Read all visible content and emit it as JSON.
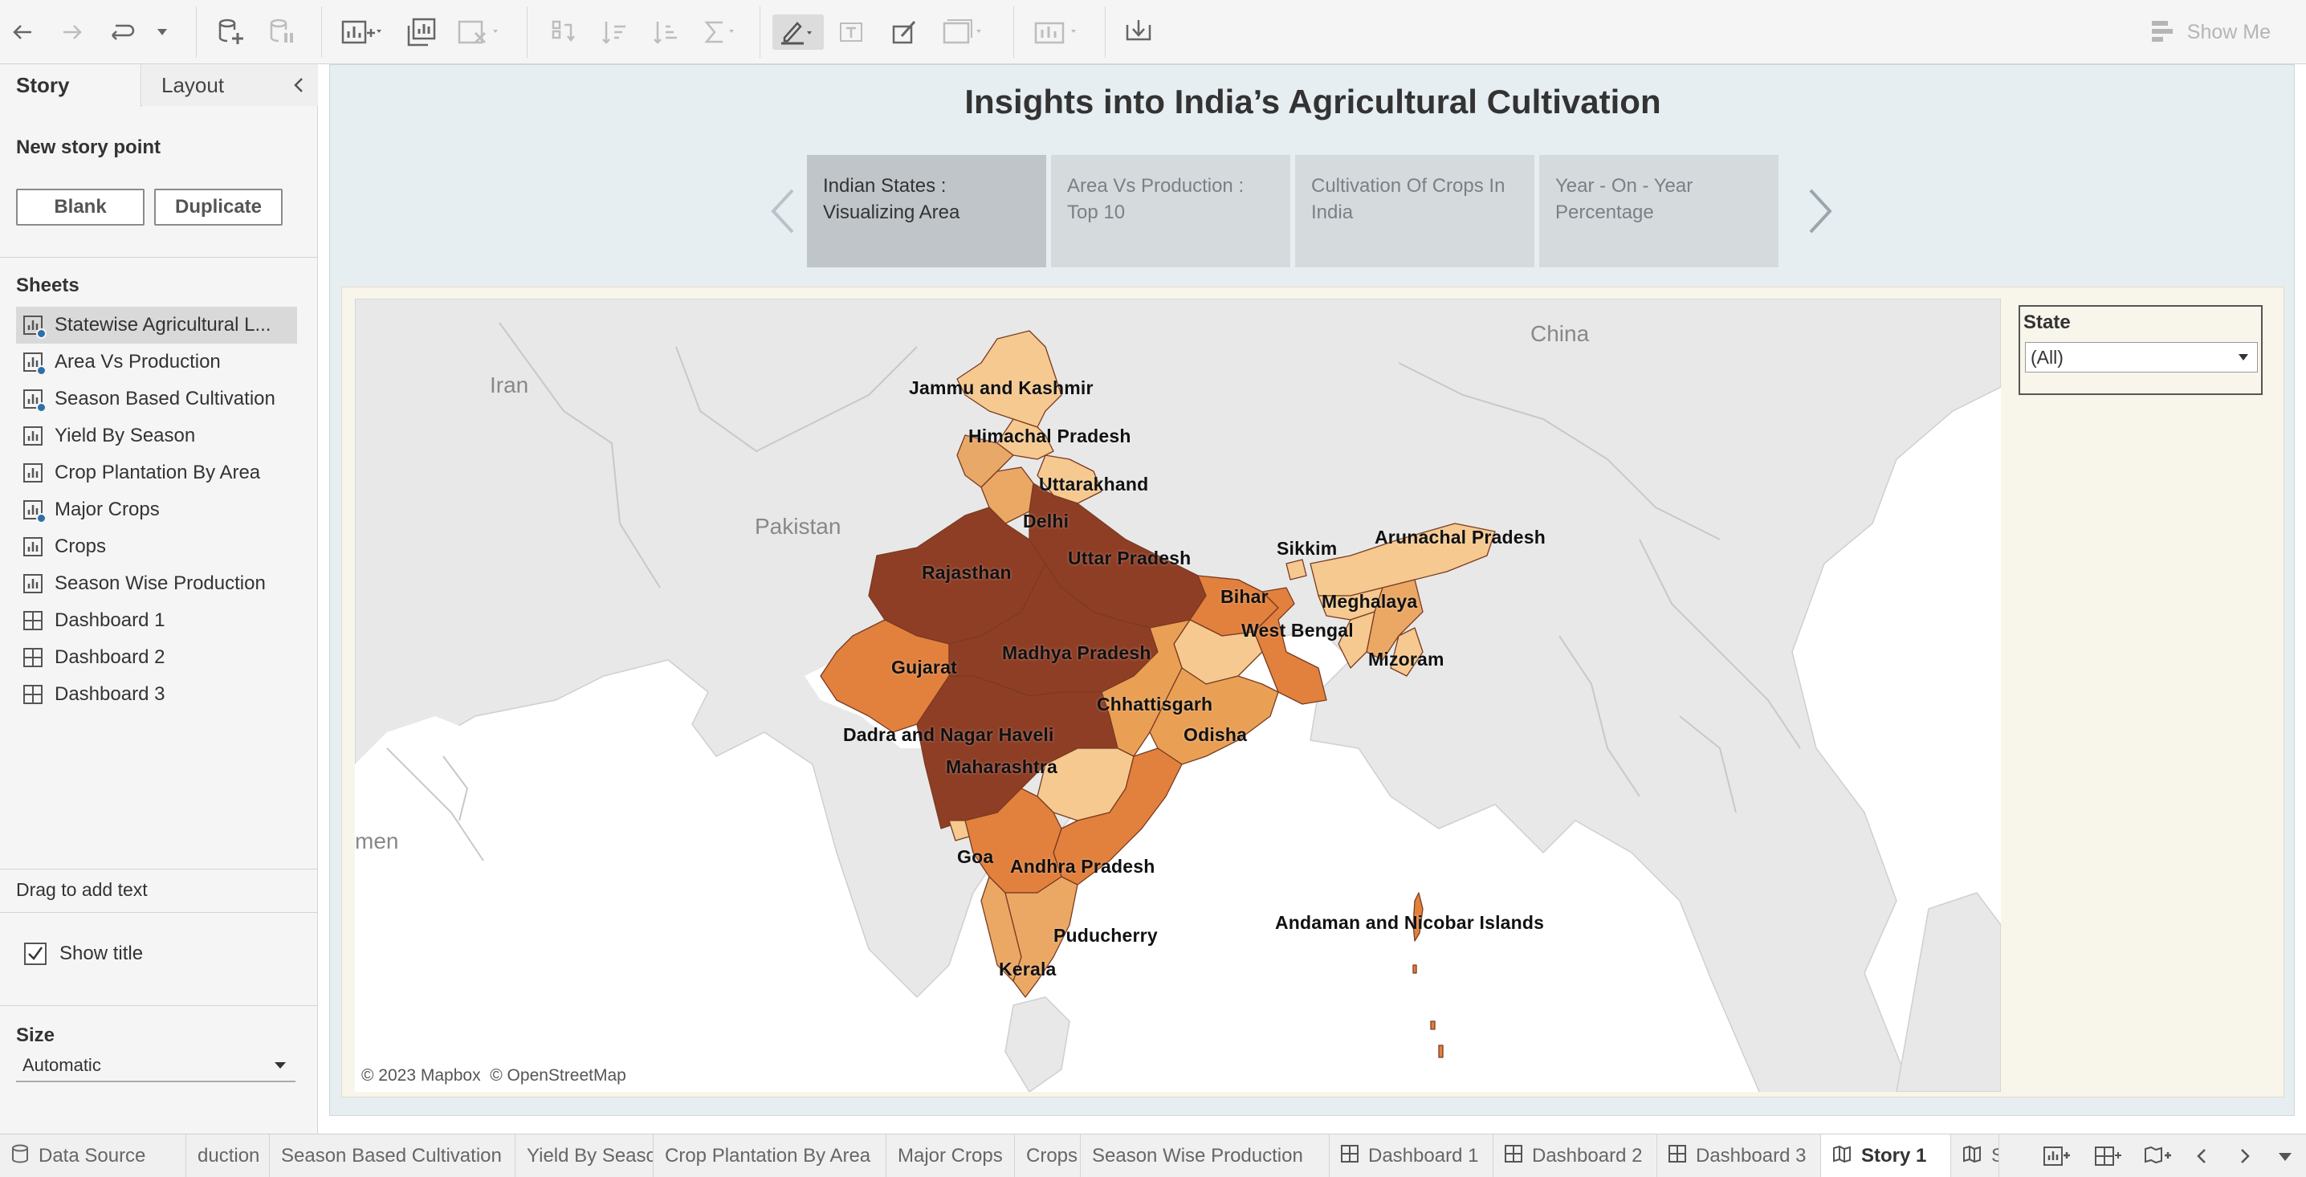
{
  "toolbar": {
    "icons": [
      "back-arrow-icon",
      "forward-arrow-icon",
      "redo-icon",
      "dropdown-icon",
      "new-data-source-icon",
      "pause-updates-icon",
      "new-worksheet-icon",
      "duplicate-sheet-icon",
      "clear-sheet-icon",
      "swap-icon",
      "sort-ascending-icon",
      "sort-descending-icon",
      "totals-icon",
      "highlight-icon",
      "label-icon",
      "format-icon",
      "fit-icon",
      "show-cards-icon",
      "download-icon"
    ],
    "show_me": "Show Me"
  },
  "left_panel": {
    "tabs": {
      "story": "Story",
      "layout": "Layout"
    },
    "new_story_point": "New story point",
    "buttons": {
      "blank": "Blank",
      "duplicate": "Duplicate"
    },
    "sheets_label": "Sheets",
    "sheets": [
      {
        "label": "Statewise Agricultural L...",
        "type": "worksheet",
        "used": true
      },
      {
        "label": "Area Vs Production",
        "type": "worksheet",
        "used": true
      },
      {
        "label": "Season Based Cultivation",
        "type": "worksheet",
        "used": true
      },
      {
        "label": "Yield By Season",
        "type": "worksheet",
        "used": false
      },
      {
        "label": "Crop Plantation By Area",
        "type": "worksheet",
        "used": false
      },
      {
        "label": "Major Crops",
        "type": "worksheet",
        "used": true
      },
      {
        "label": "Crops",
        "type": "worksheet",
        "used": false
      },
      {
        "label": "Season Wise Production",
        "type": "worksheet",
        "used": false
      },
      {
        "label": "Dashboard 1",
        "type": "dashboard",
        "used": false
      },
      {
        "label": "Dashboard 2",
        "type": "dashboard",
        "used": false
      },
      {
        "label": "Dashboard 3",
        "type": "dashboard",
        "used": false
      }
    ],
    "drag_text": "Drag to add text",
    "show_title": "Show title",
    "show_title_checked": true,
    "size_label": "Size",
    "size_value": "Automatic"
  },
  "story": {
    "title": "Insights into India’s Agricultural Cultivation",
    "points": [
      {
        "label": "Indian States : Visualizing Area",
        "active": true
      },
      {
        "label": "Area Vs Production : Top 10",
        "active": false
      },
      {
        "label": "Cultivation Of Crops In India",
        "active": false
      },
      {
        "label": "Year - On - Year Percentage",
        "active": false
      }
    ]
  },
  "map": {
    "countries": [
      "Iran",
      "Pakistan",
      "China",
      "men"
    ],
    "states": [
      "Jammu and Kashmir",
      "Himachal Pradesh",
      "Uttarakhand",
      "Delhi",
      "Rajasthan",
      "Uttar Pradesh",
      "Sikkim",
      "Arunachal Pradesh",
      "Bihar",
      "Meghalaya",
      "West Bengal",
      "Mizoram",
      "Gujarat",
      "Madhya Pradesh",
      "Chhattisgarh",
      "Dadra and Nagar Haveli",
      "Odisha",
      "Maharashtra",
      "Goa",
      "Andhra Pradesh",
      "Puducherry",
      "Kerala",
      "Andaman and Nicobar Islands"
    ],
    "attribution": [
      "© 2023 Mapbox",
      "© OpenStreetMap"
    ],
    "colors": {
      "high": "#8f3e26",
      "upper": "#c65a2e",
      "mid": "#e2813d",
      "low": "#eba865",
      "lowest": "#f5c98f",
      "land": "#e9e9e9",
      "water": "#ffffff"
    }
  },
  "filter": {
    "title": "State",
    "value": "(All)"
  },
  "bottom_tabs": [
    {
      "label": "Data Source",
      "icon": "database-icon",
      "active": false
    },
    {
      "label": "duction",
      "icon": "",
      "active": false
    },
    {
      "label": "Season Based Cultivation",
      "icon": "",
      "active": false
    },
    {
      "label": "Yield By Season",
      "icon": "",
      "active": false
    },
    {
      "label": "Crop Plantation By Area",
      "icon": "",
      "active": false
    },
    {
      "label": "Major Crops",
      "icon": "",
      "active": false
    },
    {
      "label": "Crops",
      "icon": "",
      "active": false
    },
    {
      "label": "Season Wise Production",
      "icon": "",
      "active": false
    },
    {
      "label": "Dashboard 1",
      "icon": "dashboard-icon",
      "active": false
    },
    {
      "label": "Dashboard 2",
      "icon": "dashboard-icon",
      "active": false
    },
    {
      "label": "Dashboard 3",
      "icon": "dashboard-icon",
      "active": false
    },
    {
      "label": "Story 1",
      "icon": "story-icon",
      "active": true
    },
    {
      "label": "St",
      "icon": "story-icon",
      "active": false
    }
  ]
}
